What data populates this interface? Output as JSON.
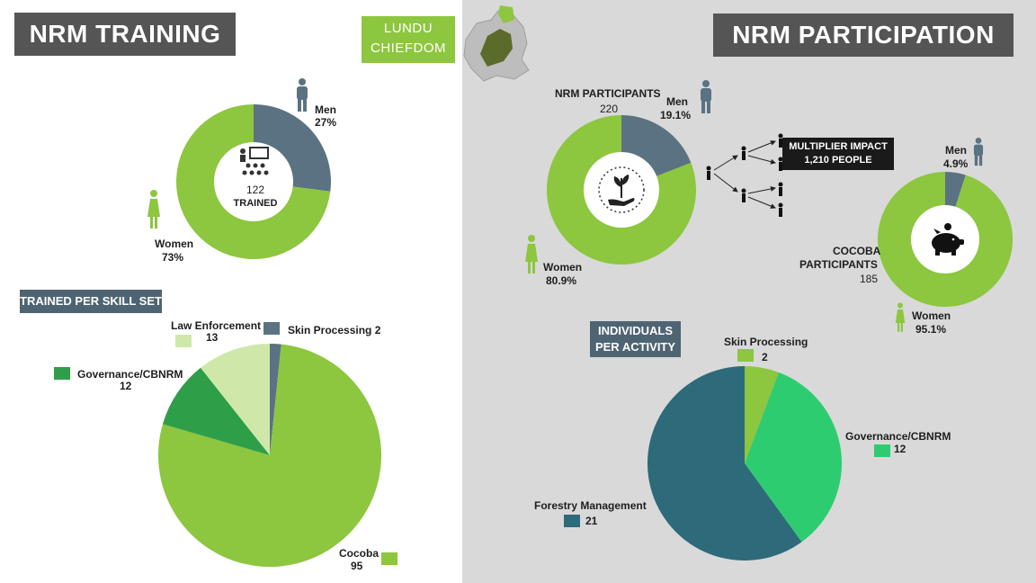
{
  "left": {
    "title": "NRM TRAINING",
    "donut": {
      "center_number": "122",
      "center_label": "TRAINED",
      "men_label": "Men",
      "men_pct": "27%",
      "women_label": "Women",
      "women_pct": "73%"
    },
    "skill_set_label": "TRAINED PER SKILL SET"
  },
  "badge": {
    "line1": "LUNDU",
    "line2": "CHIEFDOM"
  },
  "right": {
    "title": "NRM PARTICIPATION",
    "nrm": {
      "label": "NRM PARTICIPANTS",
      "count": "220",
      "men_label": "Men",
      "men_pct": "19.1%",
      "women_label": "Women",
      "women_pct": "80.9%"
    },
    "multiplier": {
      "line1": "MULTIPLIER IMPACT",
      "line2": "1,210 PEOPLE"
    },
    "cocoba": {
      "label_line1": "COCOBA",
      "label_line2": "PARTICIPANTS",
      "count": "185",
      "men_label": "Men",
      "men_pct": "4.9%",
      "women_label": "Women",
      "women_pct": "95.1%"
    },
    "activity_label_line1": "INDIVIDUALS",
    "activity_label_line2": "PER ACTIVITY"
  },
  "colors": {
    "green": "#8dc63f",
    "slate": "#5b7282",
    "dark_teal": "#2d6a7a",
    "bright_green": "#2ecc71",
    "dark_green": "#2e9e48",
    "light_green": "#cfe8a9",
    "title_bg": "#555555"
  },
  "icons": [
    "presentation-icon",
    "man-icon",
    "woman-icon",
    "plant-hand-icon",
    "piggy-bank-icon",
    "map-icon",
    "person-icon"
  ],
  "chart_data": [
    {
      "type": "pie",
      "variant": "donut",
      "categories": [
        "Men",
        "Women"
      ],
      "values": [
        27,
        73
      ],
      "colors": [
        "#5b7282",
        "#8dc63f"
      ]
    },
    {
      "type": "pie",
      "categories": [
        "Skin Processing",
        "Cocoba",
        "Governance/CBNRM",
        "Law Enforcement"
      ],
      "values": [
        2,
        95,
        12,
        13
      ],
      "label_texts": [
        "Skin Processing 2",
        "95",
        "12",
        "13"
      ],
      "label_names": [
        "Skin Processing 2",
        "Cocoba",
        "Governance/CBNRM",
        "Law Enforcement"
      ],
      "colors": [
        "#5b7282",
        "#8dc63f",
        "#2e9e48",
        "#cfe8a9"
      ]
    },
    {
      "type": "pie",
      "variant": "donut",
      "categories": [
        "Men",
        "Women"
      ],
      "values": [
        19.1,
        80.9
      ],
      "colors": [
        "#5b7282",
        "#8dc63f"
      ]
    },
    {
      "type": "pie",
      "variant": "donut",
      "categories": [
        "Men",
        "Women"
      ],
      "values": [
        4.9,
        95.1
      ],
      "colors": [
        "#5b7282",
        "#8dc63f"
      ]
    },
    {
      "type": "pie",
      "categories": [
        "Skin Processing",
        "Governance/CBNRM",
        "Forestry Management"
      ],
      "values": [
        2,
        12,
        21
      ],
      "colors": [
        "#8dc63f",
        "#2ecc71",
        "#2d6a7a"
      ]
    }
  ]
}
